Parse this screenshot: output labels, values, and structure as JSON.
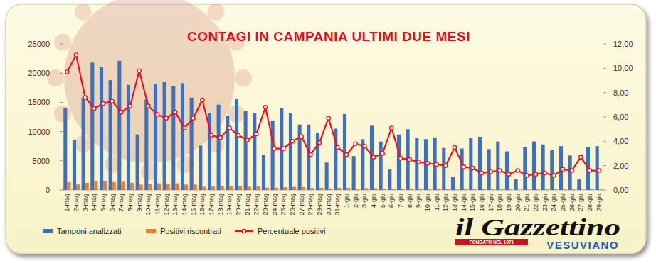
{
  "chart_data": {
    "type": "bar",
    "title": "CONTAGI IN CAMPANIA ULTIMI DUE MESI",
    "categories": [
      "1-mag",
      "2-mag",
      "3-mag",
      "4-mag",
      "5-mag",
      "6-mag",
      "7-mag",
      "8-mag",
      "9-mag",
      "10-mag",
      "11-mag",
      "12-mag",
      "13-mag",
      "14-mag",
      "15-mag",
      "16-mag",
      "17-mag",
      "18-mag",
      "19-mag",
      "20-mag",
      "21-mag",
      "22-mag",
      "23-mag",
      "24-mag",
      "25-mag",
      "26-mag",
      "27-mag",
      "28-mag",
      "29-mag",
      "30-mag",
      "31-mag",
      "1-giu",
      "2-giu",
      "3-giu",
      "4-giu",
      "5-giu",
      "6-giu",
      "7-giu",
      "8-giu",
      "9-giu",
      "10-giu",
      "11-giu",
      "12-giu",
      "13-giu",
      "14-giu",
      "15-giu",
      "16-giu",
      "17-giu",
      "18-giu",
      "19-giu",
      "20-giu",
      "21-giu",
      "22-giu",
      "23-giu",
      "24-giu",
      "25-giu",
      "26-giu",
      "27-giu",
      "28-giu",
      "29-giu"
    ],
    "series": [
      {
        "name": "Tamponi analizzati",
        "type": "bar",
        "color": "#3f6fbf",
        "values": [
          14000,
          8500,
          15800,
          21800,
          21000,
          18800,
          22100,
          18000,
          9500,
          15500,
          18200,
          18500,
          17800,
          18300,
          15800,
          7600,
          13200,
          14600,
          12700,
          15600,
          13500,
          13100,
          6000,
          11900,
          14000,
          13200,
          11200,
          11200,
          9800,
          4700,
          10500,
          13000,
          5800,
          8700,
          11000,
          8300,
          3500,
          9500,
          10400,
          8900,
          8700,
          9000,
          7200,
          2200,
          7100,
          8900,
          9100,
          7000,
          8300,
          6600,
          1900,
          7400,
          8300,
          7800,
          6900,
          7500,
          5900,
          1800,
          7400,
          7500
        ]
      },
      {
        "name": "Positivi riscontrati",
        "type": "bar",
        "color": "#ed7d31",
        "values": [
          1358,
          944,
          1216,
          1461,
          1491,
          1372,
          1414,
          1242,
          931,
          1070,
          1128,
          1092,
          1139,
          933,
          932,
          562,
          594,
          628,
          648,
          702,
          554,
          603,
          408,
          405,
          476,
          528,
          493,
          325,
          382,
          277,
          368,
          377,
          220,
          313,
          297,
          249,
          179,
          247,
          260,
          205,
          191,
          189,
          144,
          77,
          135,
          160,
          127,
          105,
          133,
          86,
          30,
          89,
          108,
          109,
          83,
          128,
          94,
          49,
          118,
          120
        ]
      },
      {
        "name": "Percentuale positivi",
        "type": "line",
        "axis": "y2",
        "color": "#e8141a",
        "marker": "circle",
        "values": [
          9.7,
          11.1,
          7.6,
          6.7,
          7.1,
          7.3,
          6.4,
          6.9,
          9.8,
          6.9,
          6.2,
          5.9,
          6.4,
          5.1,
          5.9,
          7.4,
          4.5,
          4.3,
          5.1,
          4.5,
          4.1,
          4.6,
          6.8,
          3.4,
          3.4,
          4.0,
          4.4,
          2.9,
          3.9,
          5.9,
          3.5,
          2.9,
          3.8,
          3.6,
          2.7,
          3.0,
          5.1,
          2.6,
          2.5,
          2.3,
          2.2,
          2.1,
          2.0,
          3.5,
          1.9,
          1.8,
          1.4,
          1.5,
          1.6,
          1.3,
          1.6,
          1.2,
          1.3,
          1.4,
          1.2,
          1.7,
          1.6,
          2.7,
          1.6,
          1.6
        ]
      }
    ],
    "ylim": [
      0,
      25000
    ],
    "yticks": [
      0,
      5000,
      10000,
      15000,
      20000,
      25000
    ],
    "y2lim": [
      0,
      12
    ],
    "y2ticks": [
      {
        "value": 0,
        "label": "0,00"
      },
      {
        "value": 2,
        "label": "2,00"
      },
      {
        "value": 4,
        "label": "4,00"
      },
      {
        "value": 6,
        "label": "6,00"
      },
      {
        "value": 8,
        "label": "8,00"
      },
      {
        "value": 10,
        "label": "10,00"
      },
      {
        "value": 12,
        "label": "12,00"
      }
    ],
    "grid": false,
    "legend": "bottom"
  },
  "logo": {
    "name": "il Gazzettino",
    "sub": "VESUVIANO",
    "tag": "FONDATO NEL 1971"
  }
}
